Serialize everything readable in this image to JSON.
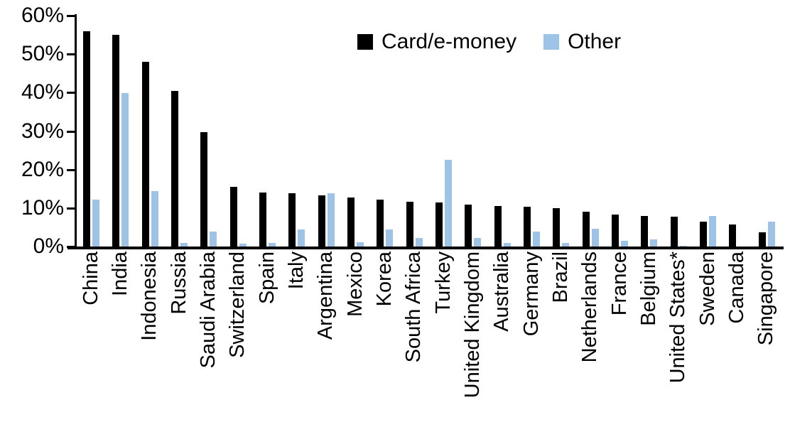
{
  "chart_data": {
    "type": "bar",
    "categories": [
      "China",
      "India",
      "Indonesia",
      "Russia",
      "Saudi Arabia",
      "Switzerland",
      "Spain",
      "Italy",
      "Argentina",
      "Mexico",
      "Korea",
      "South Africa",
      "Turkey",
      "United Kingdom",
      "Australia",
      "Germany",
      "Brazil",
      "Netherlands",
      "France",
      "Belgium",
      "United States*",
      "Sweden",
      "Canada",
      "Singapore"
    ],
    "series": [
      {
        "name": "Card/e-money",
        "color": "#000000",
        "values": [
          56,
          55,
          48,
          40.5,
          29.7,
          15.5,
          14.1,
          13.9,
          13.3,
          12.8,
          12.2,
          11.6,
          11.5,
          10.9,
          10.6,
          10.4,
          9.9,
          9.1,
          8.4,
          8.0,
          7.7,
          6.4,
          5.8,
          3.7
        ]
      },
      {
        "name": "Other",
        "color": "#9DC3E6",
        "values": [
          12.2,
          39.8,
          14.4,
          0.9,
          3.8,
          0.7,
          0.9,
          4.5,
          13.8,
          1.2,
          4.5,
          2.3,
          22.5,
          2.3,
          0.9,
          3.8,
          1.0,
          4.7,
          1.4,
          1.8,
          0.2,
          7.9,
          0,
          6.5
        ]
      }
    ],
    "ylim": [
      0,
      60
    ],
    "ytick_step": 10,
    "ytick_labels": [
      "0%",
      "10%",
      "20%",
      "30%",
      "40%",
      "50%",
      "60%"
    ],
    "grid": false,
    "legend_position": "top-center",
    "axis_color": "#000000"
  }
}
